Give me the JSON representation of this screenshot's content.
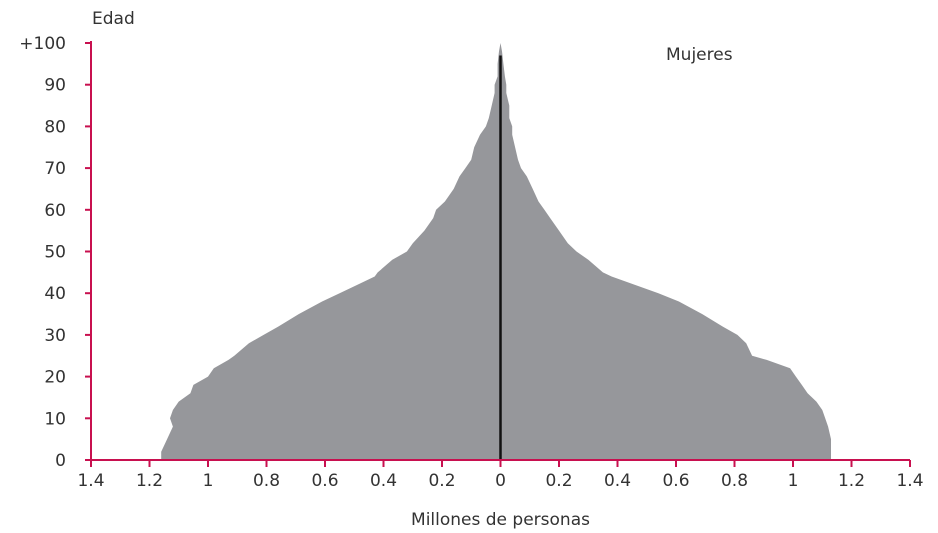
{
  "chart_data": {
    "type": "area",
    "ylabel": "Edad",
    "xlabel": "Millones de personas",
    "annotation": "Mujeres",
    "xlim": [
      -1.4,
      1.4
    ],
    "ylim": [
      0,
      100
    ],
    "x_ticks": [
      -1.4,
      -1.2,
      -1,
      -0.8,
      -0.6,
      -0.4,
      -0.2,
      0,
      0.2,
      0.4,
      0.6,
      0.8,
      1,
      1.2,
      1.4
    ],
    "x_tick_labels": [
      "1.4",
      "1.2",
      "1",
      "0.8",
      "0.6",
      "0.4",
      "0.2",
      "0",
      "0.2",
      "0.4",
      "0.6",
      "0.8",
      "1",
      "1.2",
      "1.4"
    ],
    "y_ticks": [
      0,
      10,
      20,
      30,
      40,
      50,
      60,
      70,
      80,
      90,
      100
    ],
    "y_tick_labels": [
      "0",
      "10",
      "20",
      "30",
      "40",
      "50",
      "60",
      "70",
      "80",
      "90",
      "+100"
    ],
    "ages": [
      0,
      2,
      5,
      8,
      10,
      12,
      14,
      16,
      18,
      20,
      22,
      24,
      25,
      28,
      30,
      32,
      35,
      38,
      40,
      42,
      44,
      45,
      48,
      50,
      52,
      55,
      58,
      60,
      62,
      65,
      68,
      70,
      72,
      75,
      78,
      80,
      82,
      85,
      88,
      90,
      92,
      95,
      98,
      100
    ],
    "series": [
      {
        "values": [
          -1.16,
          -1.16,
          -1.14,
          -1.12,
          -1.13,
          -1.12,
          -1.1,
          -1.06,
          -1.05,
          -1.0,
          -0.98,
          -0.93,
          -0.91,
          -0.86,
          -0.81,
          -0.76,
          -0.69,
          -0.61,
          -0.55,
          -0.49,
          -0.43,
          -0.42,
          -0.37,
          -0.32,
          -0.3,
          -0.26,
          -0.23,
          -0.22,
          -0.19,
          -0.16,
          -0.14,
          -0.12,
          -0.1,
          -0.09,
          -0.07,
          -0.05,
          -0.04,
          -0.03,
          -0.02,
          -0.02,
          -0.01,
          -0.01,
          -0.005,
          0
        ]
      },
      {
        "values": [
          1.13,
          1.13,
          1.13,
          1.12,
          1.11,
          1.1,
          1.08,
          1.05,
          1.03,
          1.01,
          0.99,
          0.91,
          0.86,
          0.84,
          0.81,
          0.76,
          0.69,
          0.61,
          0.54,
          0.46,
          0.38,
          0.35,
          0.3,
          0.26,
          0.23,
          0.2,
          0.17,
          0.15,
          0.13,
          0.11,
          0.09,
          0.07,
          0.06,
          0.05,
          0.04,
          0.04,
          0.03,
          0.03,
          0.02,
          0.02,
          0.015,
          0.01,
          0.005,
          0
        ]
      }
    ],
    "colors": {
      "fill": "#96979b",
      "axis": "#c8104f",
      "center_line": "#111111"
    }
  }
}
